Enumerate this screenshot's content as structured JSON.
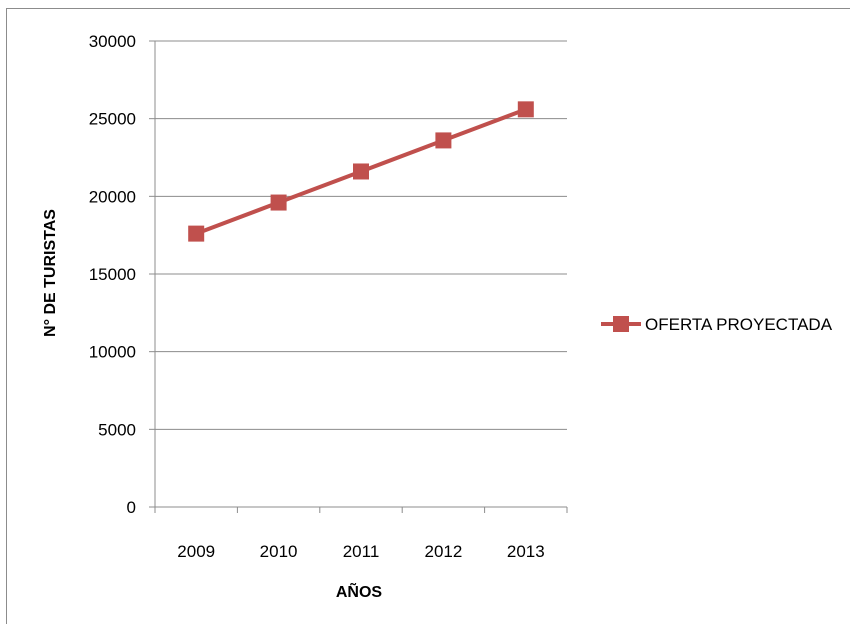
{
  "chart_data": {
    "type": "line",
    "x": [
      "2009",
      "2010",
      "2011",
      "2012",
      "2013"
    ],
    "series": [
      {
        "name": "OFERTA PROYECTADA",
        "values": [
          17600,
          19600,
          21600,
          23600,
          25600
        ],
        "color": "#c0504d",
        "marker": "square"
      }
    ],
    "xlabel": "AÑOS",
    "ylabel": "N° DE TURISTAS",
    "ylim": [
      0,
      30000
    ],
    "yticks": [
      "0",
      "5000",
      "10000",
      "15000",
      "20000",
      "25000",
      "30000"
    ],
    "grid": "horizontal",
    "legend_position": "right"
  }
}
